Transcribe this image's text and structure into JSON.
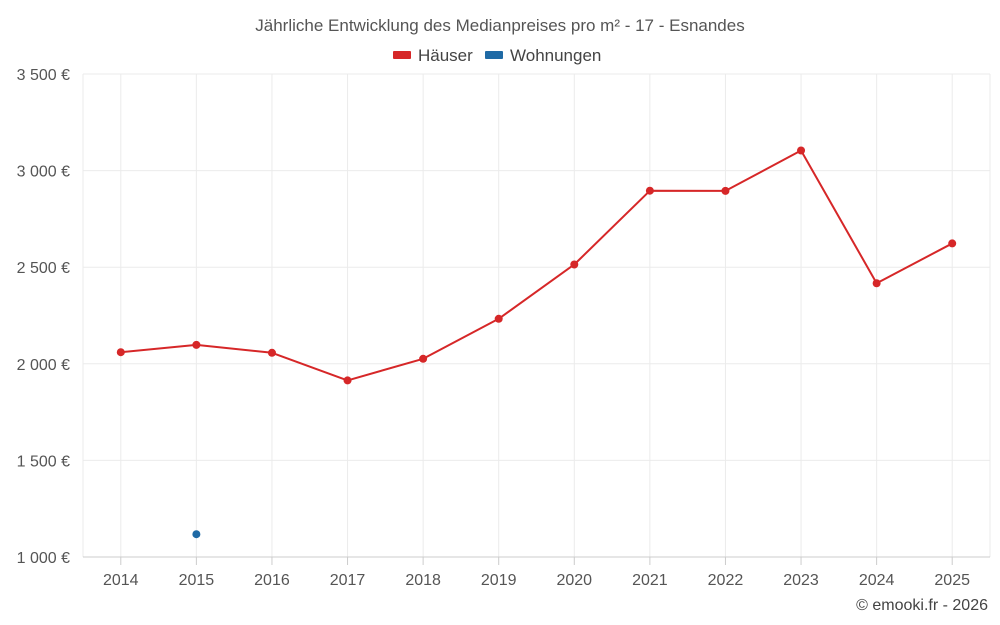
{
  "chart_data": {
    "type": "line",
    "title": "Jährliche Entwicklung des Medianpreises pro m² - 17 - Esnandes",
    "categories": [
      "2014",
      "2015",
      "2016",
      "2017",
      "2018",
      "2019",
      "2020",
      "2021",
      "2022",
      "2023",
      "2024",
      "2025"
    ],
    "series": [
      {
        "name": "Häuser",
        "color": "#d62728",
        "values": [
          2060,
          2098,
          2057,
          1914,
          2026,
          2233,
          2514,
          2896,
          2895,
          3104,
          2417,
          2623
        ]
      },
      {
        "name": "Wohnungen",
        "color": "#1f6aa5",
        "values": [
          null,
          1118,
          null,
          null,
          null,
          null,
          null,
          null,
          null,
          null,
          null,
          null
        ]
      }
    ],
    "ylim": [
      1000,
      3500
    ],
    "yticks": [
      1000,
      1500,
      2000,
      2500,
      3000,
      3500
    ],
    "ytick_labels": [
      "1 000 €",
      "1 500 €",
      "2 000 €",
      "2 500 €",
      "3 000 €",
      "3 500 €"
    ],
    "grid": true,
    "legend_position": "top-center",
    "credit": "© emooki.fr - 2026"
  }
}
